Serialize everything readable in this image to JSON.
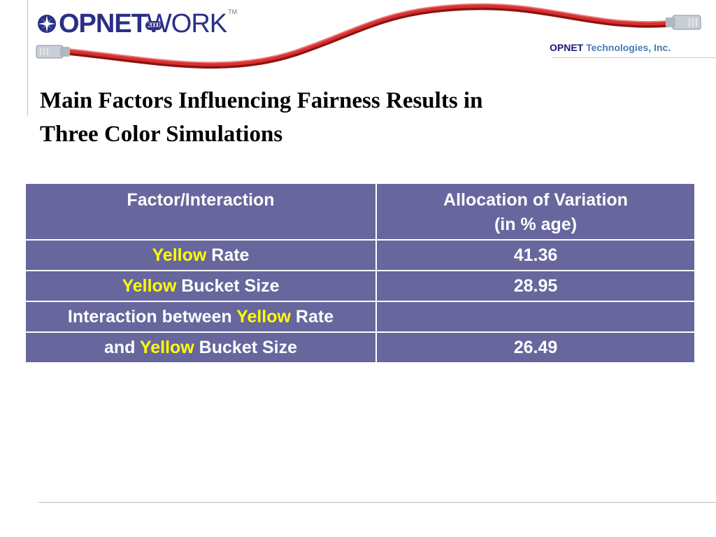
{
  "logo": {
    "brand_bold": "OPNET",
    "brand_light": "WORK",
    "year": "2000",
    "trademark": "TM"
  },
  "company": {
    "name_bold": "OPNET",
    "name_rest": "Technologies, Inc."
  },
  "slide": {
    "title_line1": "Main Factors Influencing Fairness Results in",
    "title_line2": "Three Color Simulations"
  },
  "table": {
    "headers": {
      "factor": "Factor/Interaction",
      "allocation_line1": "Allocation of Variation",
      "allocation_line2": "(in % age)"
    },
    "highlight_word": "Yellow",
    "rows": [
      {
        "prefix": "",
        "highlight": "Yellow",
        "suffix": " Rate",
        "value": "41.36"
      },
      {
        "prefix": "",
        "highlight": "Yellow",
        "suffix": " Bucket Size",
        "value": "28.95"
      },
      {
        "prefix": "Interaction between ",
        "highlight": "Yellow",
        "suffix": " Rate",
        "value": ""
      },
      {
        "prefix": "and ",
        "highlight": "Yellow",
        "suffix": " Bucket Size",
        "value": "26.49"
      }
    ]
  },
  "colors": {
    "table_fill": "#67669d",
    "highlight": "#ffff00",
    "title_text": "#000000",
    "cable_red": "#cf2a2a",
    "brand_navy": "#2b2f86"
  }
}
